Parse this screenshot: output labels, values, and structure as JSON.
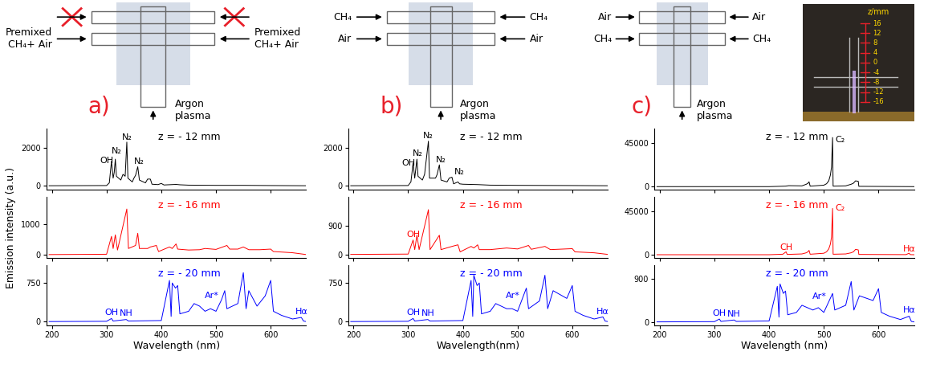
{
  "y_label": "Emission intensity (a.u.)",
  "schematics": [
    {
      "letter": "a)",
      "upper_inlet": {
        "blocked": true
      },
      "lower_inlet": {
        "label": "Premixed\nCH₄+ Air"
      },
      "bottom_inlet": "Argon\nplasma"
    },
    {
      "letter": "b)",
      "upper_inlet": {
        "label": "CH₄"
      },
      "lower_inlet": {
        "label": "Air"
      },
      "bottom_inlet": "Argon\nplasma"
    },
    {
      "letter": "c)",
      "upper_inlet": {
        "label": "Air"
      },
      "lower_inlet": {
        "label": "CH₄"
      },
      "bottom_inlet": "Argon\nplasma"
    }
  ],
  "photo": {
    "axis_label": "z/mm",
    "ticks": [
      16,
      12,
      8,
      4,
      0,
      -4,
      -8,
      -12,
      -16
    ]
  },
  "chart_data": [
    {
      "type": "line",
      "title": "z = - 12 mm",
      "color": "#000000",
      "tick_labels": "y",
      "x": [
        195,
        300,
        305,
        309,
        312,
        314,
        316,
        318,
        326,
        330,
        334,
        337,
        339,
        347,
        350,
        353,
        357,
        360,
        371,
        375,
        380,
        383,
        394,
        400,
        405,
        427,
        434,
        450,
        500,
        550,
        600,
        665
      ],
      "values": [
        0,
        10,
        150,
        1300,
        400,
        700,
        1400,
        500,
        300,
        600,
        500,
        2300,
        400,
        200,
        400,
        550,
        1000,
        300,
        150,
        350,
        350,
        80,
        60,
        120,
        40,
        70,
        50,
        30,
        20,
        20,
        10,
        0
      ],
      "xlim": [
        190,
        665
      ],
      "xticks": [
        200,
        300,
        400,
        500,
        600
      ],
      "ylim": [
        -200,
        3000
      ],
      "yticks": [
        0,
        2000
      ],
      "annotations": [
        {
          "text": "OH",
          "x": 300,
          "y": 1100
        },
        {
          "text": "N₂",
          "x": 318,
          "y": 1600
        },
        {
          "text": "N₂",
          "x": 337,
          "y": 2350
        },
        {
          "text": "N₂",
          "x": 360,
          "y": 1050
        }
      ]
    },
    {
      "type": "line",
      "title": "z = - 16 mm",
      "color": "#ff0000",
      "tick_labels": "y",
      "x": [
        195,
        300,
        309,
        312,
        316,
        320,
        337,
        340,
        353,
        357,
        360,
        375,
        380,
        391,
        395,
        415,
        420,
        427,
        430,
        450,
        470,
        480,
        500,
        520,
        525,
        540,
        550,
        560,
        580,
        600,
        605,
        640,
        665
      ],
      "values": [
        0,
        10,
        600,
        200,
        650,
        150,
        1500,
        200,
        300,
        700,
        200,
        200,
        250,
        300,
        100,
        250,
        200,
        350,
        180,
        150,
        160,
        200,
        170,
        300,
        180,
        180,
        250,
        160,
        160,
        180,
        100,
        60,
        0
      ],
      "xlim": [
        190,
        665
      ],
      "xticks": [
        200,
        300,
        400,
        500,
        600
      ],
      "ylim": [
        -100,
        1900
      ],
      "yticks": [
        0,
        1000
      ]
    },
    {
      "type": "line",
      "title": "z = - 20 mm",
      "color": "#0000ff",
      "x_label": "Wavelength (nm)",
      "x": [
        195,
        300,
        309,
        312,
        336,
        340,
        400,
        415,
        418,
        420,
        426,
        430,
        434,
        450,
        460,
        470,
        480,
        490,
        500,
        510,
        516,
        520,
        540,
        550,
        555,
        560,
        575,
        590,
        600,
        605,
        620,
        640,
        656,
        660,
        665
      ],
      "values": [
        0,
        5,
        60,
        10,
        40,
        10,
        20,
        800,
        100,
        750,
        650,
        700,
        150,
        200,
        350,
        300,
        200,
        250,
        200,
        420,
        600,
        250,
        350,
        950,
        250,
        600,
        300,
        500,
        800,
        200,
        120,
        50,
        80,
        10,
        0
      ],
      "xlim": [
        190,
        665
      ],
      "xticks": [
        200,
        300,
        400,
        500,
        600
      ],
      "ylim": [
        -80,
        1100
      ],
      "yticks": [
        0,
        750
      ],
      "annotations": [
        {
          "text": "OH",
          "x": 309,
          "y": 100
        },
        {
          "text": "NH",
          "x": 336,
          "y": 80
        },
        {
          "text": "Ar*",
          "x": 492,
          "y": 420
        },
        {
          "text": "Hα",
          "x": 656,
          "y": 120
        }
      ]
    },
    {
      "type": "line",
      "title": "z = - 12 mm",
      "color": "#000000",
      "tick_labels": "y",
      "x": [
        195,
        300,
        305,
        309,
        312,
        316,
        318,
        326,
        330,
        337,
        339,
        350,
        353,
        357,
        360,
        371,
        375,
        380,
        383,
        391,
        394,
        400,
        427,
        450,
        500,
        600,
        665
      ],
      "values": [
        0,
        10,
        200,
        1200,
        400,
        1400,
        500,
        300,
        600,
        2350,
        400,
        400,
        600,
        1100,
        300,
        200,
        400,
        450,
        100,
        200,
        100,
        80,
        60,
        30,
        20,
        10,
        0
      ],
      "xlim": [
        190,
        665
      ],
      "xticks": [
        200,
        300,
        400,
        500,
        600
      ],
      "ylim": [
        -200,
        3000
      ],
      "yticks": [
        0,
        2000
      ],
      "annotations": [
        {
          "text": "OH",
          "x": 300,
          "y": 1000
        },
        {
          "text": "N₂",
          "x": 318,
          "y": 1500
        },
        {
          "text": "N₂",
          "x": 337,
          "y": 2400
        },
        {
          "text": "N₂",
          "x": 360,
          "y": 1150
        },
        {
          "text": "N₂",
          "x": 393,
          "y": 500
        }
      ]
    },
    {
      "type": "line",
      "title": "z = - 16 mm",
      "color": "#ff0000",
      "tick_labels": "y",
      "x": [
        195,
        300,
        309,
        312,
        316,
        320,
        337,
        340,
        357,
        360,
        380,
        391,
        395,
        415,
        420,
        427,
        430,
        450,
        480,
        500,
        520,
        525,
        550,
        560,
        600,
        605,
        640,
        665
      ],
      "values": [
        0,
        10,
        450,
        150,
        600,
        150,
        1400,
        150,
        600,
        150,
        250,
        300,
        80,
        250,
        200,
        300,
        150,
        150,
        200,
        170,
        280,
        160,
        250,
        150,
        180,
        80,
        50,
        0
      ],
      "xlim": [
        190,
        665
      ],
      "xticks": [
        200,
        300,
        400,
        500,
        600
      ],
      "ylim": [
        -100,
        1800
      ],
      "yticks": [
        0,
        900
      ],
      "annotations": [
        {
          "text": "OH",
          "x": 309,
          "y": 500
        }
      ]
    },
    {
      "type": "line",
      "title": "z = - 20 mm",
      "color": "#0000ff",
      "x_label": "Wavelength(nm)",
      "x": [
        195,
        300,
        309,
        312,
        336,
        340,
        400,
        415,
        418,
        420,
        426,
        430,
        434,
        450,
        460,
        480,
        490,
        500,
        516,
        520,
        540,
        550,
        555,
        565,
        590,
        600,
        605,
        620,
        640,
        656,
        660,
        665
      ],
      "values": [
        0,
        5,
        60,
        10,
        40,
        10,
        20,
        800,
        100,
        900,
        700,
        750,
        150,
        200,
        350,
        250,
        250,
        200,
        650,
        250,
        400,
        900,
        250,
        600,
        450,
        700,
        200,
        120,
        50,
        90,
        10,
        0
      ],
      "xlim": [
        190,
        665
      ],
      "xticks": [
        200,
        300,
        400,
        500,
        600
      ],
      "ylim": [
        -80,
        1100
      ],
      "yticks": [
        0,
        750
      ],
      "annotations": [
        {
          "text": "OH",
          "x": 309,
          "y": 100
        },
        {
          "text": "NH",
          "x": 336,
          "y": 80
        },
        {
          "text": "Ar*",
          "x": 492,
          "y": 420
        },
        {
          "text": "Hα",
          "x": 656,
          "y": 120
        }
      ]
    },
    {
      "type": "line",
      "title": "z = - 12 mm",
      "color": "#000000",
      "tick_labels": "y",
      "x": [
        195,
        400,
        430,
        436,
        460,
        468,
        471,
        473,
        475,
        500,
        505,
        509,
        512,
        514,
        516,
        517,
        540,
        550,
        554,
        558,
        563,
        564,
        600,
        665
      ],
      "values": [
        0,
        0,
        500,
        1000,
        800,
        2500,
        3500,
        5000,
        500,
        1500,
        3000,
        6000,
        12000,
        20000,
        51000,
        500,
        800,
        2500,
        3500,
        6000,
        5500,
        300,
        200,
        0
      ],
      "xlim": [
        190,
        665
      ],
      "xticks": [
        200,
        300,
        400,
        500,
        600
      ],
      "ylim": [
        -3000,
        60000
      ],
      "yticks": [
        0,
        45000
      ],
      "annotations": [
        {
          "text": "C₂",
          "x": 530,
          "y": 44000
        }
      ]
    },
    {
      "type": "line",
      "title": "z = - 16 mm",
      "color": "#ff0000",
      "tick_labels": "y",
      "x": [
        195,
        400,
        425,
        431,
        433,
        460,
        468,
        471,
        473,
        475,
        500,
        505,
        509,
        512,
        514,
        516,
        517,
        540,
        550,
        554,
        558,
        563,
        564,
        600,
        650,
        656,
        658,
        665
      ],
      "values": [
        0,
        0,
        500,
        3000,
        300,
        800,
        2000,
        3000,
        4500,
        500,
        1500,
        3000,
        6000,
        11000,
        18000,
        48000,
        500,
        800,
        2000,
        3000,
        5500,
        5000,
        300,
        200,
        100,
        1500,
        100,
        0
      ],
      "xlim": [
        190,
        665
      ],
      "xticks": [
        200,
        300,
        400,
        500,
        600
      ],
      "ylim": [
        -3000,
        60000
      ],
      "yticks": [
        0,
        45000
      ],
      "annotations": [
        {
          "text": "CH",
          "x": 431,
          "y": 3500
        },
        {
          "text": "C₂",
          "x": 530,
          "y": 44000
        },
        {
          "text": "Hα",
          "x": 656,
          "y": 2000
        }
      ]
    },
    {
      "type": "line",
      "title": "z = - 20 mm",
      "color": "#0000ff",
      "x_label": "Wavelength (nm)",
      "x": [
        195,
        300,
        309,
        312,
        336,
        340,
        400,
        415,
        418,
        420,
        426,
        430,
        434,
        450,
        460,
        480,
        490,
        500,
        516,
        520,
        540,
        550,
        555,
        565,
        590,
        600,
        605,
        620,
        640,
        656,
        660,
        665
      ],
      "values": [
        0,
        5,
        60,
        10,
        40,
        10,
        20,
        750,
        100,
        800,
        600,
        650,
        150,
        200,
        350,
        250,
        300,
        200,
        600,
        250,
        350,
        850,
        250,
        550,
        450,
        700,
        200,
        120,
        50,
        120,
        10,
        0
      ],
      "xlim": [
        190,
        665
      ],
      "xticks": [
        200,
        300,
        400,
        500,
        600
      ],
      "ylim": [
        -80,
        1200
      ],
      "yticks": [
        0,
        900
      ],
      "annotations": [
        {
          "text": "OH",
          "x": 309,
          "y": 100
        },
        {
          "text": "NH",
          "x": 336,
          "y": 80
        },
        {
          "text": "Ar*",
          "x": 492,
          "y": 450
        },
        {
          "text": "Hα",
          "x": 656,
          "y": 160
        }
      ]
    }
  ]
}
